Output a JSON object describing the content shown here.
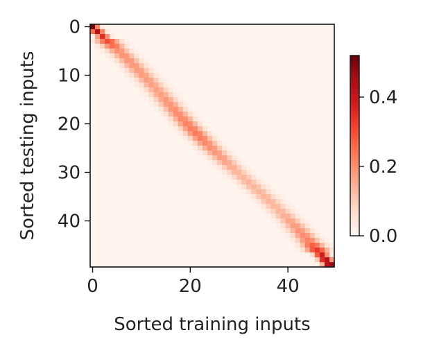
{
  "chart_data": {
    "type": "heatmap",
    "title": "",
    "xlabel": "Sorted training inputs",
    "ylabel": "Sorted testing inputs",
    "x_range": [
      0,
      50
    ],
    "y_range": [
      0,
      50
    ],
    "x_ticks": [
      0,
      20,
      40
    ],
    "y_ticks": [
      0,
      10,
      20,
      30,
      40
    ],
    "colorbar": {
      "min": 0.0,
      "max": 0.52,
      "ticks": [
        {
          "value": 0.0,
          "label": "0.0"
        },
        {
          "value": 0.2,
          "label": "0.2"
        },
        {
          "value": 0.4,
          "label": "0.4"
        }
      ]
    },
    "colormap": "Reds",
    "colors": {
      "low": "#fff5f0",
      "mid": "#fb6a4a",
      "high": "#67000d"
    },
    "description_of_values": "Attention weight concentrated along the diagonal (testing input i attends to training input near i). Peak values near 0.5 at the top-left and bottom-right corners, about 0.2 along the middle of the diagonal, background near 0.0.",
    "diagonal_peaks": [
      {
        "row": 0,
        "value": 0.52
      },
      {
        "row": 2,
        "value": 0.35
      },
      {
        "row": 5,
        "value": 0.2
      },
      {
        "row": 13,
        "value": 0.17
      },
      {
        "row": 22,
        "value": 0.24
      },
      {
        "row": 30,
        "value": 0.14
      },
      {
        "row": 38,
        "value": 0.14
      },
      {
        "row": 44,
        "value": 0.22
      },
      {
        "row": 49,
        "value": 0.5
      }
    ]
  }
}
